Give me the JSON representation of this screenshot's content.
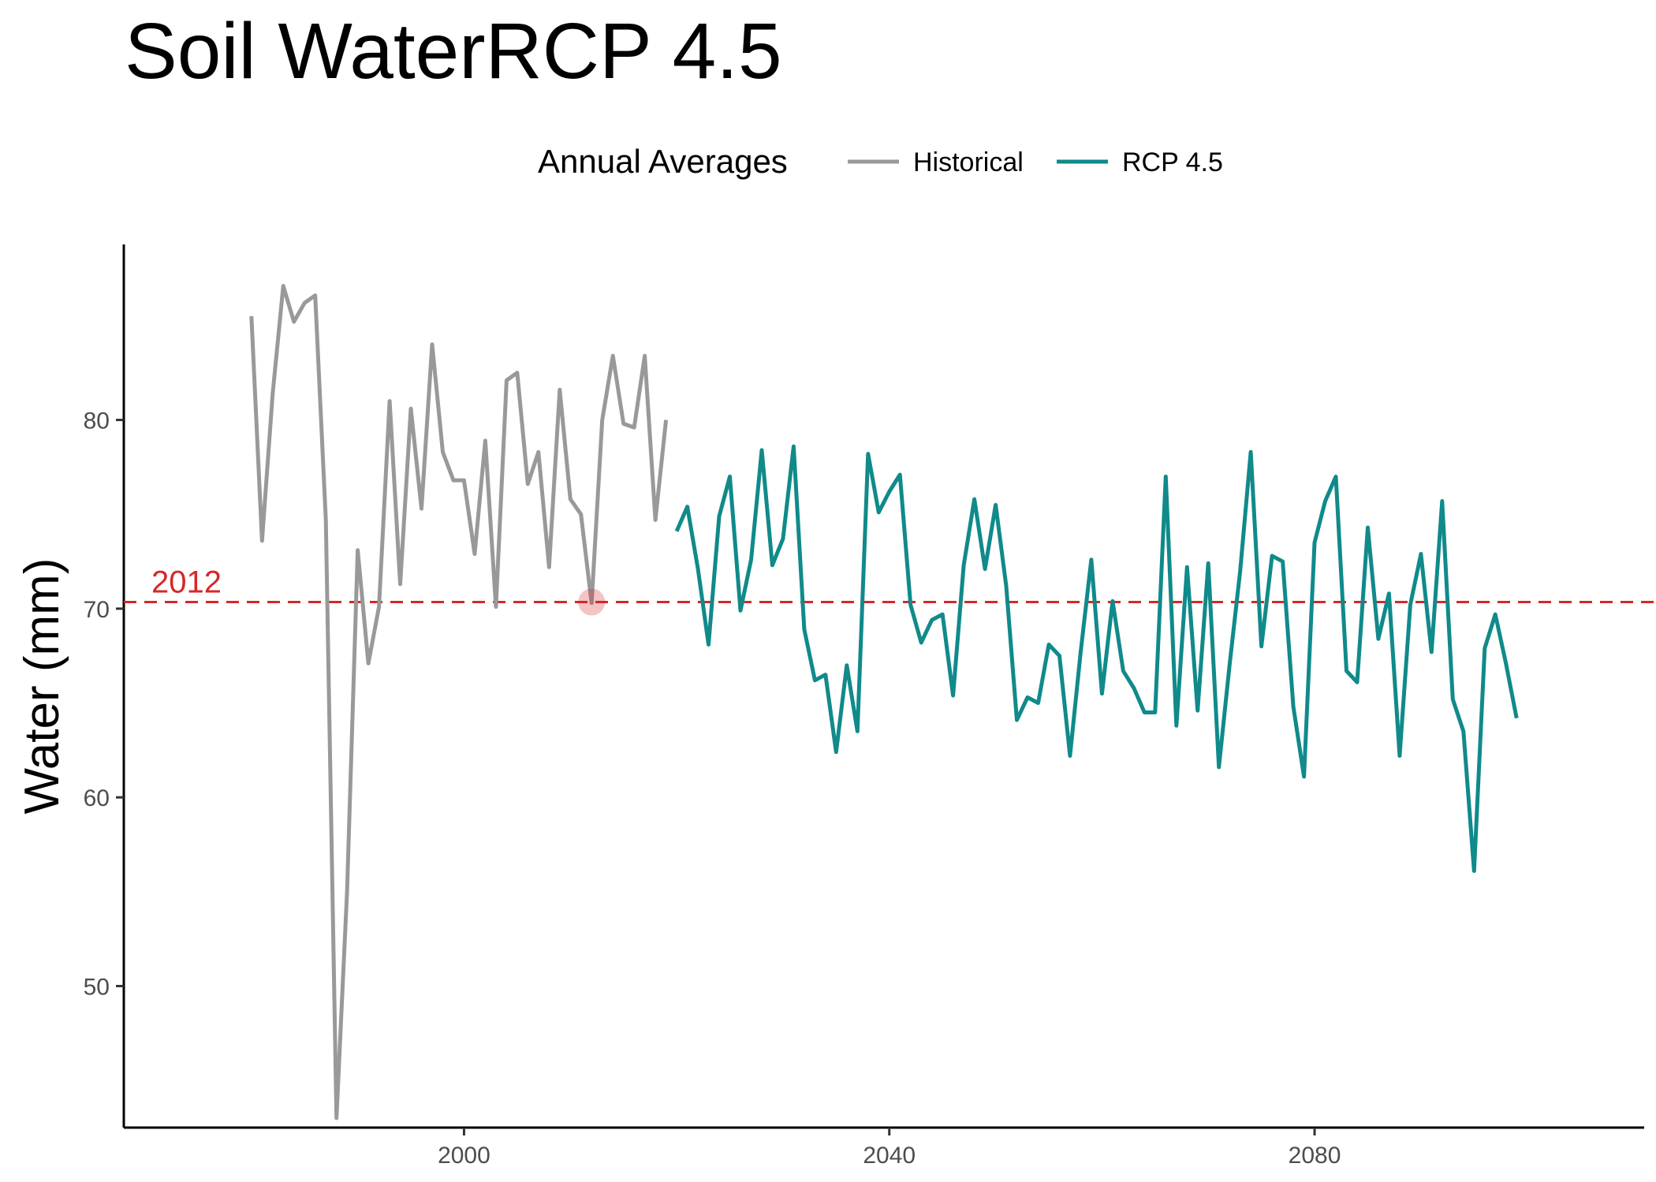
{
  "chart_data": {
    "type": "line",
    "title": "Soil WaterRCP 4.5",
    "xlabel": "",
    "ylabel": "Water (mm)",
    "xlim": [
      1968,
      2111
    ],
    "ylim": [
      42.5,
      89.3
    ],
    "x_ticks": [
      2000,
      2040,
      2080
    ],
    "y_ticks": [
      50,
      60,
      70,
      80
    ],
    "grid": false,
    "legend": {
      "title": "Annual Averages",
      "position": "top",
      "entries": [
        "Historical",
        "RCP 4.5"
      ]
    },
    "colors": {
      "Historical": "#999999",
      "RCP 4.5": "#108A8A",
      "reference": "#D62728"
    },
    "series": [
      {
        "name": "Historical",
        "x": [
          1980,
          1981,
          1982,
          1983,
          1984,
          1985,
          1986,
          1987,
          1988,
          1989,
          1990,
          1991,
          1992,
          1993,
          1994,
          1995,
          1996,
          1997,
          1998,
          1999,
          2000,
          2001,
          2002,
          2003,
          2004,
          2005,
          2006,
          2007,
          2008,
          2009,
          2010,
          2011,
          2012,
          2013,
          2014,
          2015,
          2016,
          2017,
          2018,
          2019
        ],
        "values": [
          85.5,
          73.6,
          81.4,
          87.1,
          85.2,
          86.2,
          86.6,
          74.7,
          43.0,
          55.0,
          73.1,
          67.1,
          70.1,
          81.0,
          71.3,
          80.6,
          75.3,
          84.0,
          78.3,
          76.8,
          76.8,
          72.9,
          78.9,
          70.1,
          82.1,
          82.5,
          76.6,
          78.3,
          72.2,
          81.6,
          75.8,
          75.0,
          70.3,
          80.0,
          83.4,
          79.8,
          79.6,
          83.4,
          74.7,
          80.0
        ]
      },
      {
        "name": "RCP 4.5",
        "x": [
          2020,
          2021,
          2022,
          2023,
          2024,
          2025,
          2026,
          2027,
          2028,
          2029,
          2030,
          2031,
          2032,
          2033,
          2034,
          2035,
          2036,
          2037,
          2038,
          2039,
          2040,
          2041,
          2042,
          2043,
          2044,
          2045,
          2046,
          2047,
          2048,
          2049,
          2050,
          2051,
          2052,
          2053,
          2054,
          2055,
          2056,
          2057,
          2058,
          2059,
          2060,
          2061,
          2062,
          2063,
          2064,
          2065,
          2066,
          2067,
          2068,
          2069,
          2070,
          2071,
          2072,
          2073,
          2074,
          2075,
          2076,
          2077,
          2078,
          2079,
          2080,
          2081,
          2082,
          2083,
          2084,
          2085,
          2086,
          2087,
          2088,
          2089,
          2090,
          2091,
          2092,
          2093,
          2094,
          2095,
          2096,
          2097,
          2098,
          2099
        ],
        "values": [
          74.1,
          75.4,
          72.1,
          68.1,
          74.9,
          77.0,
          69.9,
          72.6,
          78.4,
          72.3,
          73.7,
          78.6,
          68.9,
          66.2,
          66.5,
          62.4,
          67.0,
          63.5,
          78.2,
          75.1,
          76.2,
          77.1,
          70.2,
          68.2,
          69.4,
          69.7,
          65.4,
          72.3,
          75.8,
          72.1,
          75.5,
          71.2,
          64.1,
          65.3,
          65.0,
          68.1,
          67.5,
          62.2,
          67.7,
          72.6,
          65.5,
          70.4,
          66.7,
          65.8,
          64.5,
          64.5,
          77.0,
          63.8,
          72.2,
          64.6,
          72.4,
          61.6,
          67.0,
          72.0,
          78.3,
          68.0,
          72.8,
          72.5,
          64.8,
          61.1,
          73.5,
          75.7,
          77.0,
          66.7,
          66.1,
          74.3,
          68.4,
          70.8,
          62.2,
          70.2,
          72.9,
          67.7,
          75.7,
          65.2,
          63.5,
          56.1,
          67.9,
          69.7,
          67.1,
          64.2
        ]
      }
    ],
    "reference_line": {
      "y": 70.35,
      "label": "2012",
      "style": "dashed",
      "highlight_point": {
        "x": 2012,
        "y": 70.35
      }
    }
  }
}
